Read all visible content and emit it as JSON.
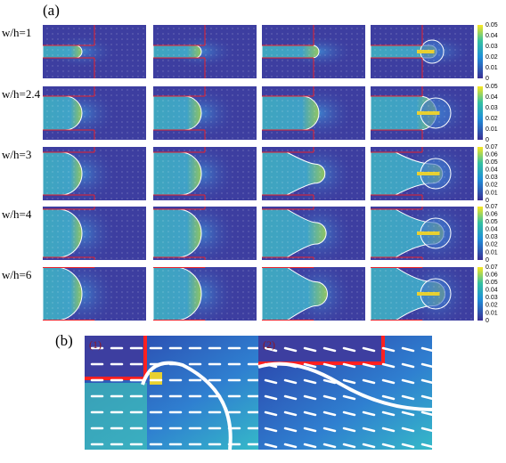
{
  "panel_a": {
    "label": "(a)",
    "rows": [
      {
        "label": "w/h=1",
        "colorbar_ticks": [
          "0.05",
          "0.04",
          "0.03",
          "0.02",
          "0.01",
          "0"
        ]
      },
      {
        "label": "w/h=2.4",
        "colorbar_ticks": [
          "0.05",
          "0.04",
          "0.03",
          "0.02",
          "0.01",
          "0"
        ]
      },
      {
        "label": "w/h=3",
        "colorbar_ticks": [
          "0.07",
          "0.06",
          "0.05",
          "0.04",
          "0.03",
          "0.02",
          "0.01",
          "0"
        ]
      },
      {
        "label": "w/h=4",
        "colorbar_ticks": [
          "0.07",
          "0.06",
          "0.05",
          "0.04",
          "0.03",
          "0.02",
          "0.01",
          "0"
        ]
      },
      {
        "label": "w/h=6",
        "colorbar_ticks": [
          "0.07",
          "0.06",
          "0.05",
          "0.04",
          "0.03",
          "0.02",
          "0.01",
          "0"
        ]
      }
    ]
  },
  "panel_b": {
    "label": "(b)",
    "insets": [
      "(1)",
      "(2)"
    ]
  }
}
